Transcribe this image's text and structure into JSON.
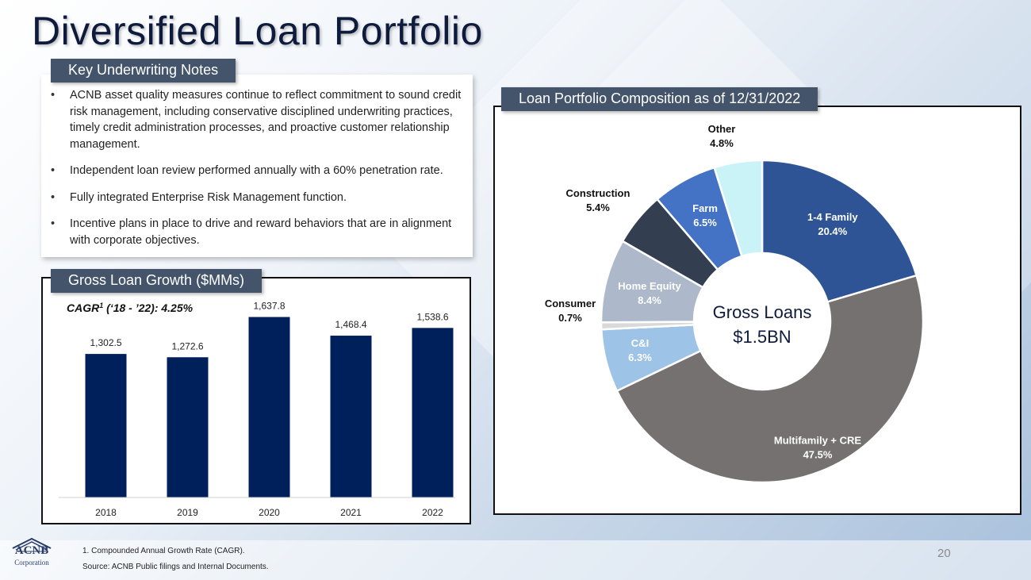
{
  "title": "Diversified Loan Portfolio",
  "notes": {
    "tab_label": "Key Underwriting Notes",
    "bullets": [
      "ACNB asset quality measures continue to reflect commitment to sound credit risk management, including conservative disciplined underwriting practices, timely credit administration processes, and proactive customer relationship management.",
      "Independent loan review performed annually with a 60% penetration rate.",
      "Fully integrated Enterprise Risk Management function.",
      "Incentive plans in place to drive and reward behaviors that are in alignment with corporate objectives."
    ]
  },
  "growth": {
    "tab_label": "Gross Loan Growth ($MMs)",
    "cagr_prefix": "CAGR",
    "cagr_sup": "1",
    "cagr_suffix": " (‘18 - ’22): 4.25%"
  },
  "composition": {
    "tab_label": "Loan Portfolio Composition as of 12/31/2022",
    "center_line1": "Gross Loans",
    "center_line2": "$1.5BN"
  },
  "chart_data": [
    {
      "type": "bar",
      "title": "Gross Loan Growth ($MMs)",
      "categories": [
        "2018",
        "2019",
        "2020",
        "2021",
        "2022"
      ],
      "values": [
        1302.5,
        1272.6,
        1637.8,
        1468.4,
        1538.6
      ],
      "value_labels": [
        "1,302.5",
        "1,272.6",
        "1,637.8",
        "1,468.4",
        "1,538.6"
      ],
      "ylim": [
        0,
        1800
      ],
      "grid": false,
      "color": "#00205b"
    },
    {
      "type": "pie",
      "title": "Loan Portfolio Composition as of 12/31/2022",
      "donut": true,
      "slices": [
        {
          "label": "1-4 Family",
          "pct_label": "20.4%",
          "value": 20.4,
          "color": "#2f5496",
          "label_inside": true
        },
        {
          "label": "Multifamily + CRE",
          "pct_label": "47.5%",
          "value": 47.5,
          "color": "#767171",
          "label_inside": true
        },
        {
          "label": "C&I",
          "pct_label": "6.3%",
          "value": 6.3,
          "color": "#9dc3e6",
          "label_inside": true
        },
        {
          "label": "Consumer",
          "pct_label": "0.7%",
          "value": 0.7,
          "color": "#d9d9d9",
          "label_inside": false
        },
        {
          "label": "Home Equity",
          "pct_label": "8.4%",
          "value": 8.4,
          "color": "#adb9ca",
          "label_inside": true
        },
        {
          "label": "Construction",
          "pct_label": "5.4%",
          "value": 5.4,
          "color": "#333f50",
          "label_inside": false
        },
        {
          "label": "Farm",
          "pct_label": "6.5%",
          "value": 6.5,
          "color": "#4472c4",
          "label_inside": true
        },
        {
          "label": "Other",
          "pct_label": "4.8%",
          "value": 4.8,
          "color": "#c9f3f6",
          "label_inside": false
        }
      ]
    }
  ],
  "footnotes": {
    "note1": "1.  Compounded Annual Growth Rate (CAGR).",
    "source": "Source:  ACNB Public filings and Internal Documents."
  },
  "page_number": "20",
  "logo": {
    "name": "ACNB",
    "sub": "Corporation"
  }
}
